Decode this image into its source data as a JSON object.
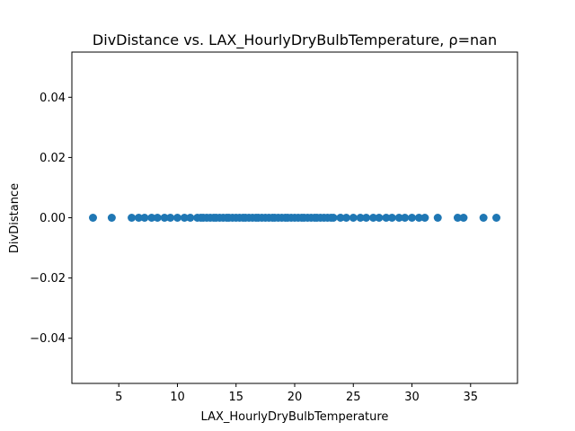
{
  "chart_data": {
    "type": "scatter",
    "title": "DivDistance vs. LAX_HourlyDryBulbTemperature, ρ=nan",
    "xlabel": "LAX_HourlyDryBulbTemperature",
    "ylabel": "DivDistance",
    "xlim": [
      1.0,
      39.0
    ],
    "ylim": [
      -0.055,
      0.055
    ],
    "xticks": [
      5,
      10,
      15,
      20,
      25,
      30,
      35
    ],
    "yticks": [
      0.04,
      0.02,
      0.0,
      -0.02,
      -0.04
    ],
    "ytick_labels": [
      "0.04",
      "0.02",
      "0.00",
      "−0.02",
      "−0.04"
    ],
    "grid": false,
    "marker_color": "#1f77b4",
    "points": {
      "x": [
        2.8,
        4.4,
        6.1,
        6.7,
        7.2,
        7.8,
        8.3,
        8.9,
        9.4,
        10.0,
        10.6,
        11.1,
        11.7,
        12.0,
        12.2,
        12.5,
        12.8,
        13.1,
        13.3,
        13.6,
        13.9,
        14.2,
        14.4,
        14.7,
        15.0,
        15.3,
        15.6,
        15.8,
        16.1,
        16.4,
        16.7,
        16.9,
        17.2,
        17.5,
        17.8,
        18.1,
        18.3,
        18.6,
        18.9,
        19.2,
        19.4,
        19.7,
        20.0,
        20.3,
        20.6,
        20.8,
        21.1,
        21.4,
        21.7,
        21.9,
        22.2,
        22.5,
        22.8,
        23.1,
        23.3,
        23.9,
        24.4,
        25.0,
        25.6,
        26.1,
        26.7,
        27.2,
        27.8,
        28.3,
        28.9,
        29.4,
        30.0,
        30.6,
        31.1,
        32.2,
        33.9,
        34.4,
        36.1,
        37.2
      ],
      "y": [
        0.0,
        0.0,
        0.0,
        0.0,
        0.0,
        0.0,
        0.0,
        0.0,
        0.0,
        0.0,
        0.0,
        0.0,
        0.0,
        0.0,
        0.0,
        0.0,
        0.0,
        0.0,
        0.0,
        0.0,
        0.0,
        0.0,
        0.0,
        0.0,
        0.0,
        0.0,
        0.0,
        0.0,
        0.0,
        0.0,
        0.0,
        0.0,
        0.0,
        0.0,
        0.0,
        0.0,
        0.0,
        0.0,
        0.0,
        0.0,
        0.0,
        0.0,
        0.0,
        0.0,
        0.0,
        0.0,
        0.0,
        0.0,
        0.0,
        0.0,
        0.0,
        0.0,
        0.0,
        0.0,
        0.0,
        0.0,
        0.0,
        0.0,
        0.0,
        0.0,
        0.0,
        0.0,
        0.0,
        0.0,
        0.0,
        0.0,
        0.0,
        0.0,
        0.0,
        0.0,
        0.0,
        0.0,
        0.0,
        0.0
      ]
    }
  }
}
